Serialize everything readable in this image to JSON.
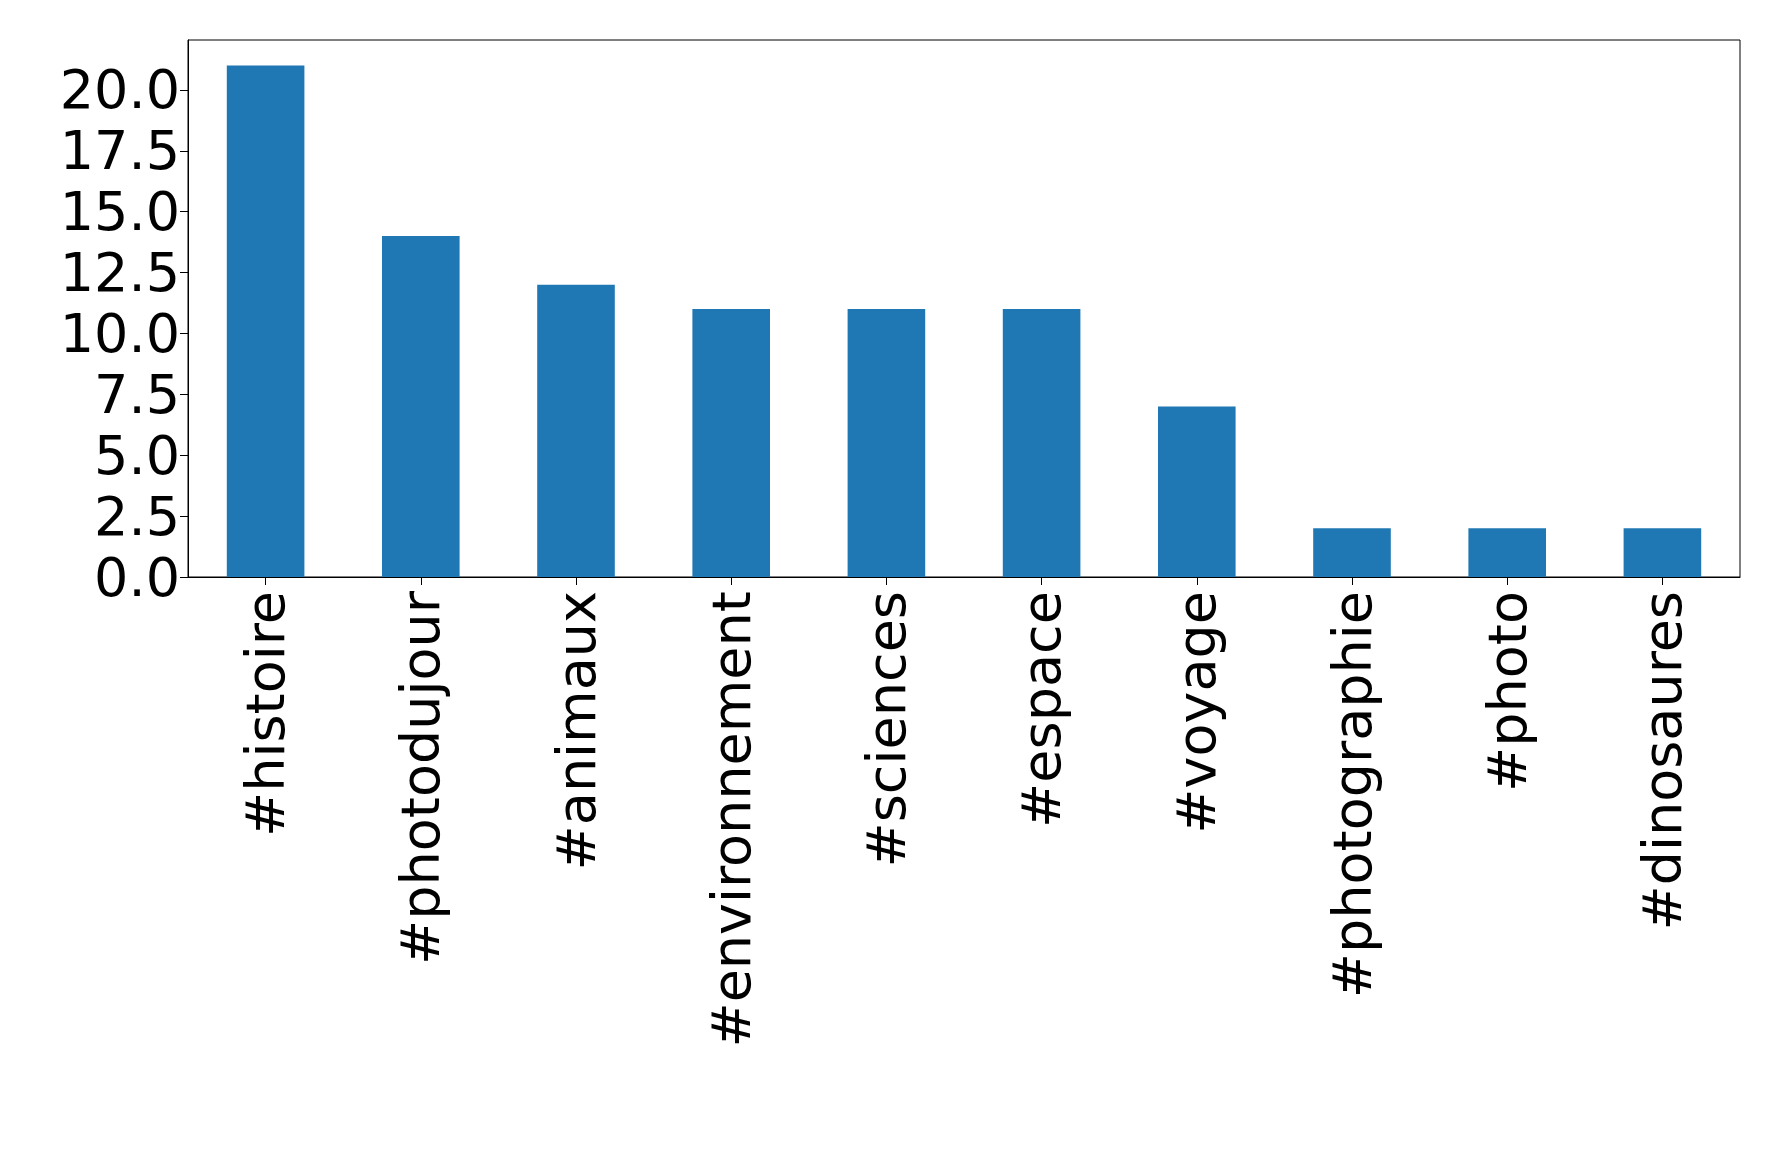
{
  "chart_data": {
    "type": "bar",
    "categories": [
      "#histoire",
      "#photodujour",
      "#animaux",
      "#environnement",
      "#sciences",
      "#espace",
      "#voyage",
      "#photographie",
      "#photo",
      "#dinosaures"
    ],
    "values": [
      21,
      14,
      12,
      11,
      11,
      11,
      7,
      2,
      2,
      2
    ],
    "color": "#1f77b4",
    "ylim": [
      0,
      22.05
    ],
    "yticks": [
      {
        "value": 0,
        "label": "0.0"
      },
      {
        "value": 2.5,
        "label": "2.5"
      },
      {
        "value": 5,
        "label": "5.0"
      },
      {
        "value": 7.5,
        "label": "7.5"
      },
      {
        "value": 10,
        "label": "10.0"
      },
      {
        "value": 12.5,
        "label": "12.5"
      },
      {
        "value": 15,
        "label": "15.0"
      },
      {
        "value": 17.5,
        "label": "17.5"
      },
      {
        "value": 20,
        "label": "20.0"
      }
    ],
    "grid": false
  }
}
